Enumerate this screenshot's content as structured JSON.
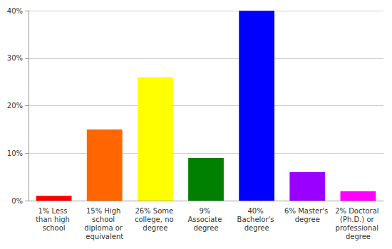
{
  "chart_data": {
    "type": "bar",
    "categories": [
      "1% Less than high school",
      "15% High school diploma or equivalent",
      "26% Some college, no degree",
      "9% Associate degree",
      "40% Bachelor's degree",
      "6% Master's degree",
      "2% Doctoral (Ph.D.) or professional degree"
    ],
    "values": [
      1,
      15,
      26,
      9,
      40,
      6,
      2
    ],
    "colors": [
      "#ff0000",
      "#ff6600",
      "#ffff00",
      "#008000",
      "#0000ff",
      "#9900ff",
      "#ff00ff"
    ],
    "ylim": [
      0,
      40
    ],
    "yticks": [
      {
        "value": 0,
        "label": "0%"
      },
      {
        "value": 10,
        "label": "10%"
      },
      {
        "value": 20,
        "label": "20%"
      },
      {
        "value": 30,
        "label": "30%"
      },
      {
        "value": 40,
        "label": "40%"
      }
    ],
    "grid": true
  }
}
